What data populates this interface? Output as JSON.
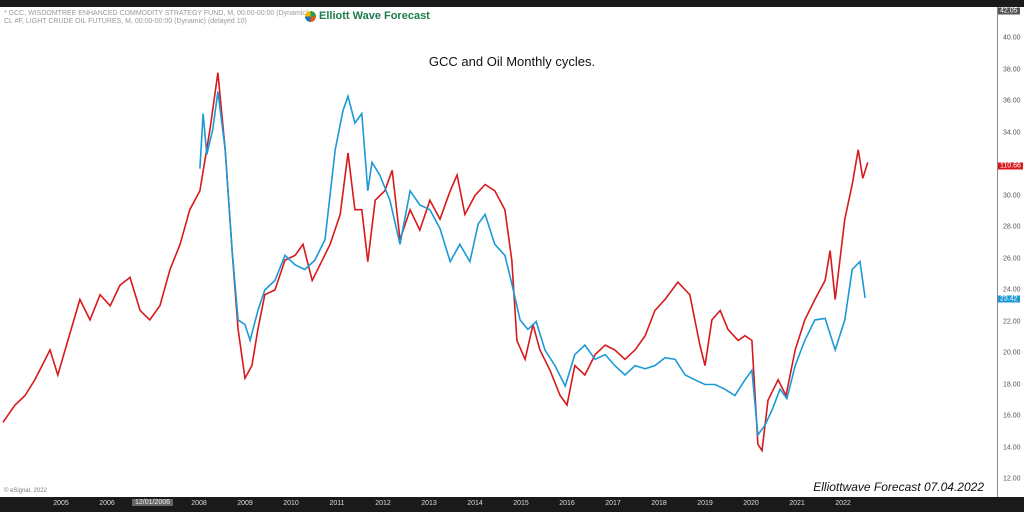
{
  "header": {
    "legend_lines": [
      "* GCC, WISDOMTREE ENHANCED COMMODITY STRATEGY FUND, M, 00:00-00:00 (Dynamic)",
      "CL #F, LIGHT CRUDE OIL FUTURES, M, 00:00-00:00 (Dynamic) (delayed 10)"
    ],
    "brand": "Elliott Wave Forecast",
    "copyright": "© eSignal, 2022",
    "stamp": "Elliottwave Forecast  07.04.2022",
    "x_selected_label": "12/01/2006"
  },
  "chart_data": {
    "type": "line",
    "title": "GCC and Oil Monthly cycles.",
    "xlim": [
      2003.7,
      2024.4
    ],
    "ylim": [
      11.2,
      42.05
    ],
    "x_ticks": [
      "2005",
      "2006",
      "2008",
      "2009",
      "2010",
      "2011",
      "2012",
      "2013",
      "2014",
      "2015",
      "2016",
      "2017",
      "2018",
      "2019",
      "2020",
      "2021",
      "2022"
    ],
    "y_ticks": [
      "40.00",
      "38.00",
      "36.00",
      "34.00",
      "30.00",
      "28.00",
      "26.00",
      "24.00",
      "22.00",
      "20.00",
      "18.00",
      "16.00",
      "14.00",
      "12.00"
    ],
    "top_label": "42.05",
    "grid": false,
    "series": [
      {
        "name": "CL #F",
        "color": "#d7191c",
        "last_label": "110.66",
        "last_label_value": 31.9,
        "x": [
          2003.74,
          2004.0,
          2004.22,
          2004.43,
          2004.59,
          2004.76,
          2004.93,
          2005.15,
          2005.41,
          2005.63,
          2005.85,
          2006.07,
          2006.28,
          2006.5,
          2006.72,
          2006.93,
          2007.15,
          2007.37,
          2007.59,
          2007.8,
          2008.02,
          2008.24,
          2008.41,
          2008.57,
          2008.72,
          2008.85,
          2009.0,
          2009.15,
          2009.28,
          2009.43,
          2009.65,
          2009.87,
          2010.09,
          2010.26,
          2010.46,
          2010.63,
          2010.85,
          2011.07,
          2011.24,
          2011.39,
          2011.54,
          2011.67,
          2011.83,
          2012.04,
          2012.2,
          2012.37,
          2012.59,
          2012.8,
          2013.02,
          2013.24,
          2013.46,
          2013.61,
          2013.78,
          2014.0,
          2014.22,
          2014.43,
          2014.65,
          2014.8,
          2014.91,
          2015.09,
          2015.26,
          2015.41,
          2015.63,
          2015.85,
          2016.0,
          2016.17,
          2016.39,
          2016.61,
          2016.83,
          2017.04,
          2017.26,
          2017.48,
          2017.7,
          2017.91,
          2018.13,
          2018.41,
          2018.67,
          2018.89,
          2019.0,
          2019.15,
          2019.33,
          2019.5,
          2019.72,
          2019.87,
          2020.02,
          2020.15,
          2020.24,
          2020.37,
          2020.59,
          2020.76,
          2020.96,
          2021.17,
          2021.39,
          2021.61,
          2021.72,
          2021.83,
          2022.04,
          2022.2,
          2022.33,
          2022.43,
          2022.54
        ],
        "y": [
          15.6,
          16.7,
          17.3,
          18.3,
          19.2,
          20.2,
          18.6,
          20.8,
          23.4,
          22.1,
          23.7,
          23.0,
          24.3,
          24.8,
          22.7,
          22.1,
          23.0,
          25.3,
          26.9,
          29.1,
          30.3,
          34.2,
          37.8,
          32.9,
          26.5,
          21.5,
          18.4,
          19.2,
          21.5,
          23.7,
          24.0,
          25.9,
          26.2,
          26.9,
          24.6,
          25.6,
          26.9,
          28.8,
          32.7,
          29.1,
          29.1,
          25.8,
          29.7,
          30.3,
          31.6,
          27.2,
          29.1,
          27.8,
          29.7,
          28.5,
          30.3,
          31.3,
          28.8,
          30.0,
          30.7,
          30.3,
          29.1,
          25.9,
          20.8,
          19.6,
          21.8,
          20.2,
          18.9,
          17.3,
          16.7,
          19.2,
          18.6,
          19.9,
          20.5,
          20.2,
          19.6,
          20.2,
          21.1,
          22.7,
          23.4,
          24.5,
          23.7,
          20.5,
          19.2,
          22.1,
          22.7,
          21.5,
          20.8,
          21.1,
          20.8,
          14.2,
          13.8,
          17.0,
          18.3,
          17.3,
          20.2,
          22.1,
          23.4,
          24.6,
          26.5,
          23.4,
          28.5,
          30.7,
          32.9,
          31.1,
          32.1
        ]
      },
      {
        "name": "GCC",
        "color": "#1b9ad6",
        "last_label": "23.42",
        "last_label_value": 23.42,
        "x": [
          2008.02,
          2008.09,
          2008.17,
          2008.3,
          2008.41,
          2008.57,
          2008.72,
          2008.85,
          2009.0,
          2009.11,
          2009.28,
          2009.43,
          2009.65,
          2009.87,
          2010.09,
          2010.3,
          2010.52,
          2010.74,
          2010.96,
          2011.13,
          2011.24,
          2011.39,
          2011.54,
          2011.67,
          2011.76,
          2011.93,
          2012.15,
          2012.37,
          2012.59,
          2012.8,
          2013.02,
          2013.24,
          2013.46,
          2013.67,
          2013.89,
          2014.07,
          2014.22,
          2014.43,
          2014.65,
          2014.8,
          2014.98,
          2015.15,
          2015.33,
          2015.52,
          2015.74,
          2015.96,
          2016.17,
          2016.39,
          2016.61,
          2016.83,
          2017.04,
          2017.26,
          2017.48,
          2017.7,
          2017.91,
          2018.13,
          2018.35,
          2018.57,
          2018.78,
          2019.0,
          2019.22,
          2019.43,
          2019.65,
          2019.87,
          2020.02,
          2020.15,
          2020.3,
          2020.46,
          2020.63,
          2020.78,
          2020.96,
          2021.17,
          2021.39,
          2021.61,
          2021.83,
          2022.04,
          2022.2,
          2022.37,
          2022.48
        ],
        "y": [
          31.7,
          35.2,
          32.6,
          34.2,
          36.6,
          32.9,
          26.5,
          22.1,
          21.8,
          20.8,
          22.7,
          24.0,
          24.6,
          26.2,
          25.6,
          25.3,
          25.9,
          27.2,
          32.9,
          35.4,
          36.3,
          34.6,
          35.2,
          30.3,
          32.1,
          31.3,
          29.7,
          26.9,
          30.3,
          29.4,
          29.1,
          27.9,
          25.8,
          26.9,
          25.8,
          28.2,
          28.8,
          26.9,
          26.2,
          24.4,
          22.1,
          21.5,
          22.0,
          20.2,
          19.2,
          17.9,
          19.9,
          20.5,
          19.6,
          19.9,
          19.2,
          18.6,
          19.2,
          19.0,
          19.2,
          19.7,
          19.6,
          18.6,
          18.3,
          18.0,
          18.0,
          17.7,
          17.3,
          18.3,
          18.9,
          14.8,
          15.4,
          16.4,
          17.7,
          17.1,
          19.2,
          20.8,
          22.1,
          22.2,
          20.2,
          22.1,
          25.3,
          25.8,
          23.5
        ]
      }
    ]
  }
}
